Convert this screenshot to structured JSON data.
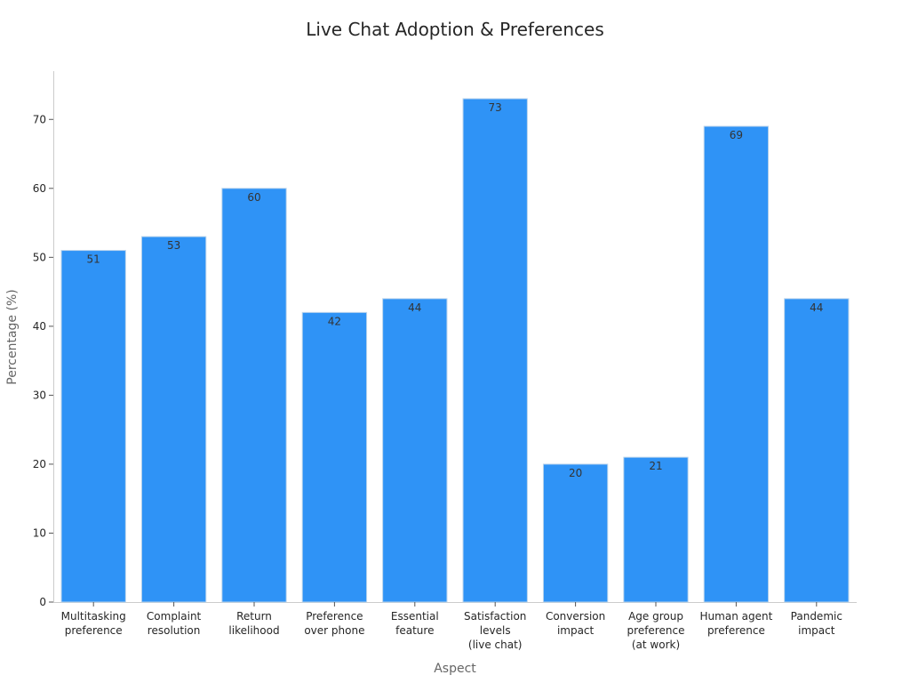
{
  "chart_data": {
    "type": "bar",
    "title": "Live Chat Adoption & Preferences",
    "xlabel": "Aspect",
    "ylabel": "Percentage (%)",
    "ylim": [
      0,
      77
    ],
    "yticks": [
      0,
      10,
      20,
      30,
      40,
      50,
      60,
      70
    ],
    "grid": false,
    "bar_color": "#2f93f6",
    "categories": [
      [
        "Multitasking",
        "preference"
      ],
      [
        "Complaint",
        "resolution"
      ],
      [
        "Return",
        "likelihood"
      ],
      [
        "Preference",
        "over phone"
      ],
      [
        "Essential",
        "feature"
      ],
      [
        "Satisfaction",
        "levels",
        "(live chat)"
      ],
      [
        "Conversion",
        "impact"
      ],
      [
        "Age group",
        "preference",
        "(at work)"
      ],
      [
        "Human agent",
        "preference"
      ],
      [
        "Pandemic",
        "impact"
      ]
    ],
    "values": [
      51,
      53,
      60,
      42,
      44,
      73,
      20,
      21,
      69,
      44
    ]
  }
}
